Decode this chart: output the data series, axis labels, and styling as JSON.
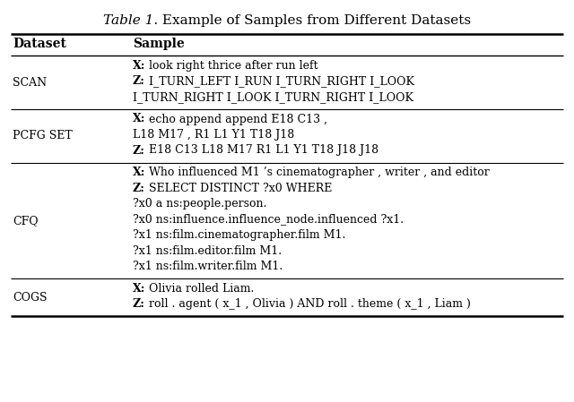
{
  "title_italic": "Table 1.",
  "title_normal": " Example of Samples from Different Datasets",
  "col_headers": [
    "Dataset",
    "Sample"
  ],
  "rows": [
    {
      "dataset": "SCAN",
      "sample_lines": [
        [
          {
            "text": "X:",
            "bold": true
          },
          {
            "text": " look right thrice after run left",
            "bold": false
          }
        ],
        [
          {
            "text": "Z:",
            "bold": true
          },
          {
            "text": " I_TURN_LEFT I_RUN I_TURN_RIGHT I_LOOK",
            "bold": false
          }
        ],
        [
          {
            "text": "I_TURN_RIGHT I_LOOK I_TURN_RIGHT I_LOOK",
            "bold": false
          }
        ]
      ]
    },
    {
      "dataset": "PCFG SET",
      "sample_lines": [
        [
          {
            "text": "X:",
            "bold": true
          },
          {
            "text": " echo append append E18 C13 ,",
            "bold": false
          }
        ],
        [
          {
            "text": "L18 M17 , R1 L1 Y1 T18 J18",
            "bold": false
          }
        ],
        [
          {
            "text": "Z:",
            "bold": true
          },
          {
            "text": " E18 C13 L18 M17 R1 L1 Y1 T18 J18 J18",
            "bold": false
          }
        ]
      ]
    },
    {
      "dataset": "CFQ",
      "sample_lines": [
        [
          {
            "text": "X:",
            "bold": true
          },
          {
            "text": " Who influenced M1 ’s cinematographer , writer , and editor",
            "bold": false
          }
        ],
        [
          {
            "text": "Z:",
            "bold": true
          },
          {
            "text": " SELECT DISTINCT ?x0 WHERE",
            "bold": false
          }
        ],
        [
          {
            "text": "?x0 a ns:people.person.",
            "bold": false
          }
        ],
        [
          {
            "text": "?x0 ns:influence.influence_node.influenced ?x1.",
            "bold": false
          }
        ],
        [
          {
            "text": "?x1 ns:film.cinematographer.film M1.",
            "bold": false
          }
        ],
        [
          {
            "text": "?x1 ns:film.editor.film M1.",
            "bold": false
          }
        ],
        [
          {
            "text": "?x1 ns:film.writer.film M1.",
            "bold": false
          }
        ]
      ]
    },
    {
      "dataset": "COGS",
      "sample_lines": [
        [
          {
            "text": "X:",
            "bold": true
          },
          {
            "text": " Olivia rolled Liam.",
            "bold": false
          }
        ],
        [
          {
            "text": "Z:",
            "bold": true
          },
          {
            "text": " roll . agent ( x_1 , Olivia ) AND roll . theme ( x_1 , Liam )",
            "bold": false
          }
        ]
      ]
    }
  ],
  "bg_color": "#ffffff",
  "text_color": "#000000",
  "line_color": "#000000",
  "font_size": 9.0,
  "title_font_size": 11.0,
  "header_font_size": 10.0
}
